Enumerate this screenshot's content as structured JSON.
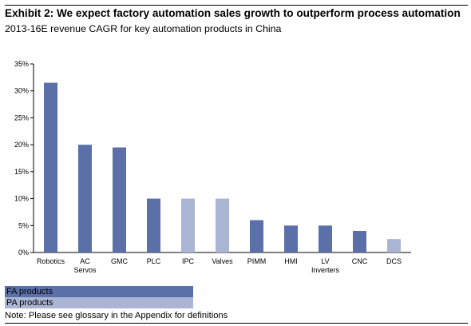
{
  "title": "Exhibit 2: We expect factory automation sales growth to outperform process automation",
  "subtitle": "2013-16E revenue CAGR for key automation products in China",
  "colors": {
    "fa": "#5b6fa8",
    "pa": "#aab5d4"
  },
  "legend": [
    {
      "label": "FA products",
      "color": "#5b6fa8"
    },
    {
      "label": "PA products",
      "color": "#aab5d4"
    }
  ],
  "note": "Note: Please see glossary in the Appendix for definitions",
  "chart_data": {
    "type": "bar",
    "title": "",
    "xlabel": "",
    "ylabel": "",
    "ylim": [
      0,
      35
    ],
    "yticks": [
      "0%",
      "5%",
      "10%",
      "15%",
      "20%",
      "25%",
      "30%",
      "35%"
    ],
    "grid": false,
    "categories": [
      [
        "Robotics"
      ],
      [
        "AC",
        "Servos"
      ],
      [
        "GMC"
      ],
      [
        "PLC"
      ],
      [
        "IPC"
      ],
      [
        "Valves"
      ],
      [
        "PIMM"
      ],
      [
        "HMI"
      ],
      [
        "LV",
        "Inverters"
      ],
      [
        "CNC"
      ],
      [
        "DCS"
      ]
    ],
    "values": [
      31.5,
      20,
      19.5,
      10,
      10,
      10,
      6,
      5,
      5,
      4,
      2.5
    ],
    "groups": [
      "FA",
      "FA",
      "FA",
      "FA",
      "PA",
      "PA",
      "FA",
      "FA",
      "FA",
      "FA",
      "PA"
    ]
  }
}
